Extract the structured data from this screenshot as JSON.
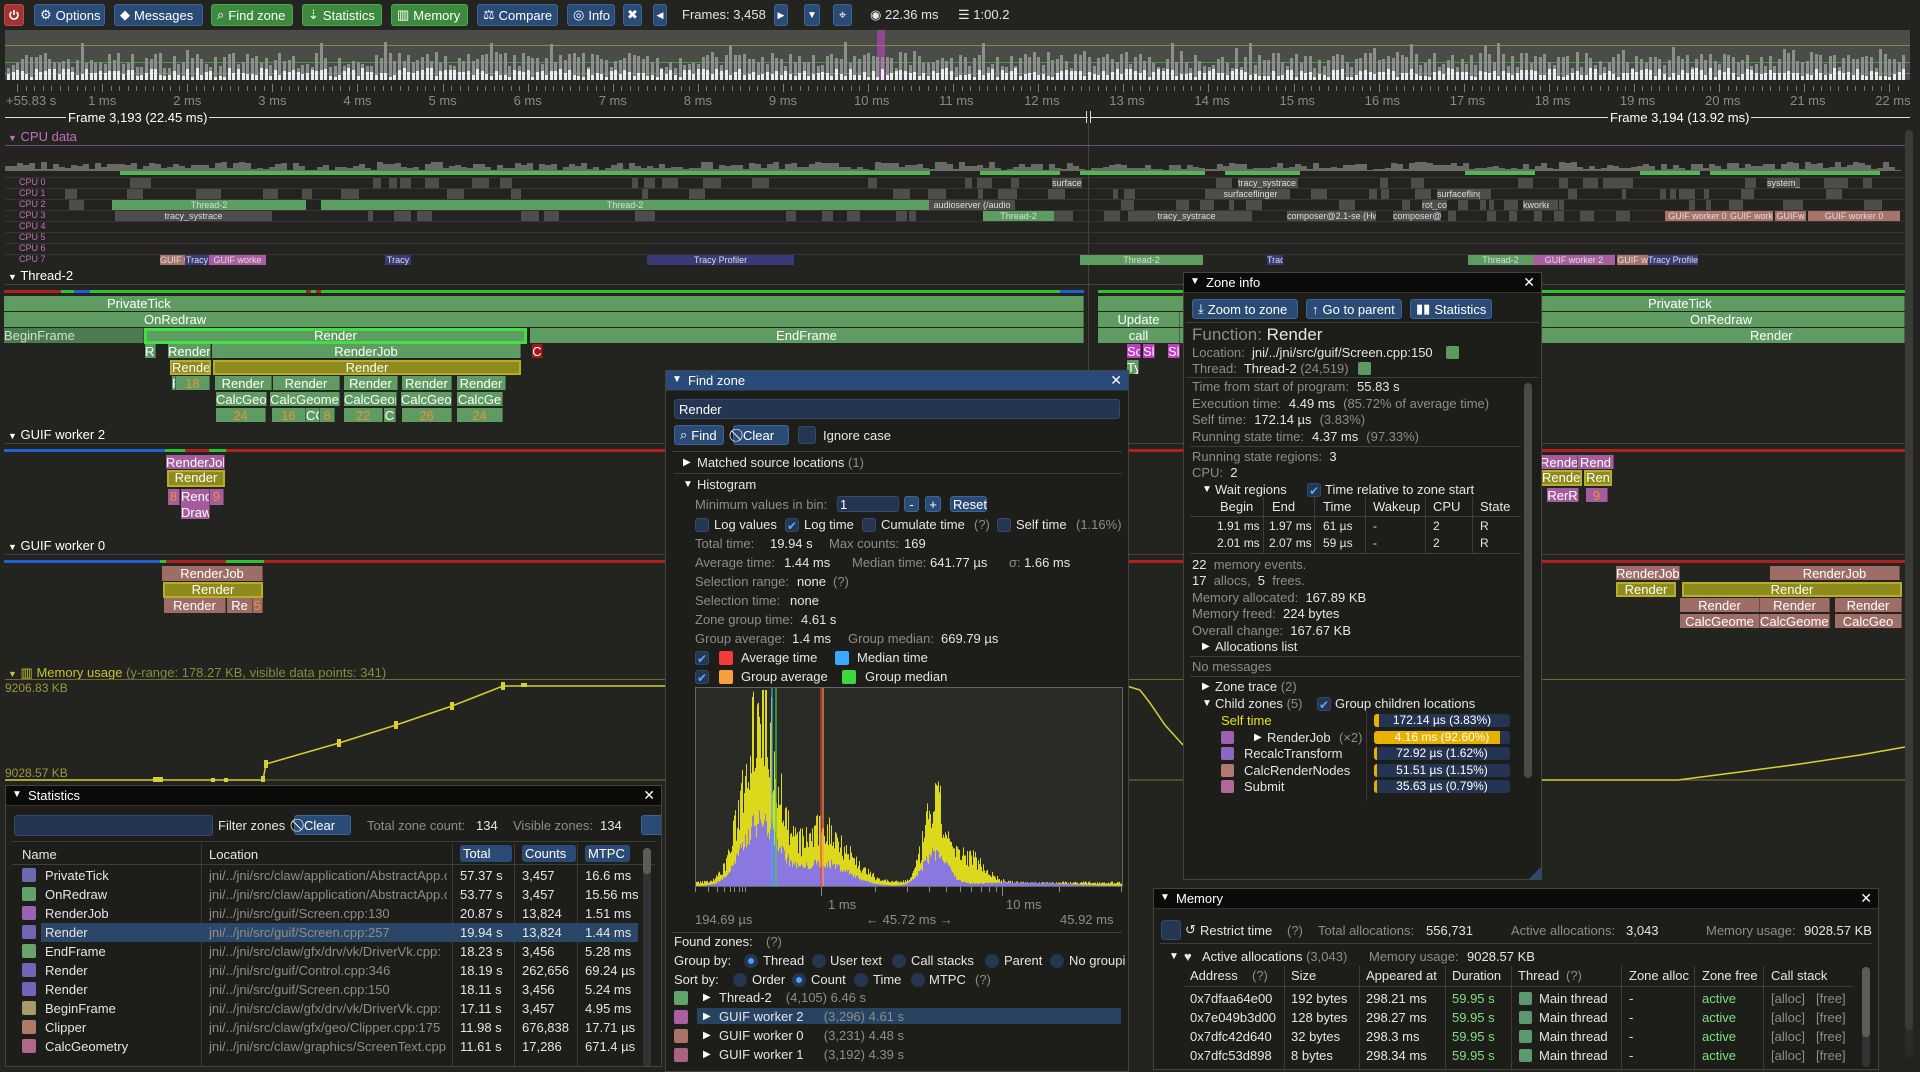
{
  "toolbar": {
    "power_icon": "power-icon",
    "options": "Options",
    "messages": "Messages",
    "find_zone": "Find zone",
    "statistics": "Statistics",
    "memory": "Memory",
    "compare": "Compare",
    "info": "Info",
    "frames": "Frames: 3,458",
    "frame_time": "22.36 ms",
    "trace_time": "1:00.2",
    "colors": {
      "blue_button": "#2b4b77",
      "green_button": "#3b8a3e",
      "red_button": "#a33434"
    }
  },
  "ruler": {
    "labels": [
      "+55.83 s",
      "1 ms",
      "2 ms",
      "3 ms",
      "4 ms",
      "5 ms",
      "6 ms",
      "7 ms",
      "8 ms",
      "9 ms",
      "10 ms",
      "11 ms",
      "12 ms",
      "13 ms",
      "14 ms",
      "15 ms",
      "16 ms",
      "17 ms",
      "18 ms",
      "19 ms",
      "20 ms",
      "21 ms",
      "22 ms"
    ]
  },
  "frames": [
    "Frame 3,193 (22.45 ms)",
    "Frame 3,194 (13.92 ms)"
  ],
  "cpu": {
    "header": "CPU data",
    "rows": [
      "CPU 0",
      "CPU 1",
      "CPU 2",
      "CPU 3",
      "CPU 4",
      "CPU 5",
      "CPU 6",
      "CPU 7"
    ],
    "labels": [
      "Thread-2",
      "tracy_systrace",
      "surfaceflinger",
      "audioserver (/audio",
      "composer@2.1-se (Hw",
      "composer@",
      "kworke",
      "GUIF worker 0",
      "GUIF worker 2",
      "Tracy Profiler",
      "system_s",
      "surfacef",
      "rot_co",
      "Tracy",
      "GUIF w",
      "Trac",
      "kworl",
      "GUIF worke",
      "GUIFw"
    ]
  },
  "threads": {
    "thread2": {
      "name": "Thread-2",
      "zones": [
        "PrivateTick",
        "OnRedraw",
        "BeginFrame",
        "Render",
        "EndFrame",
        "RC",
        "Render",
        "RenderJob",
        "C",
        "Rende",
        "Render",
        "F",
        "18",
        "Render",
        "Render",
        "Render",
        "Render",
        "Render",
        "CalcGeo",
        "CalcGeome",
        "CalcGeor",
        "CalcGeo",
        "CalcGe",
        "24",
        "16",
        "CC",
        "8",
        "22",
        "C",
        "26",
        "24",
        "Update",
        "call",
        "PrivateTick",
        "OnRedraw",
        "Render",
        "Sc",
        "Sl",
        "Sl",
        "Ty"
      ]
    },
    "guif2": {
      "name": "GUIF worker 2",
      "zones": [
        "RenderJol",
        "Render",
        "8",
        "Rend",
        "9",
        "Draw",
        "RenderJ",
        "Rend",
        "Render",
        "Ren",
        "RerR",
        "9"
      ]
    },
    "guif0": {
      "name": "GUIF worker 0",
      "zones": [
        "RenderJob",
        "Render",
        "Render",
        "Re",
        "5",
        "RenderJob",
        "RenderJob",
        "Render",
        "Render",
        "Render",
        "Render",
        "Render",
        "CalcGeome",
        "CalcGeomet",
        "CalcGeo"
      ]
    }
  },
  "memory_plot": {
    "title": "Memory usage",
    "info": "(y-range: 178.27 KB, visible data points: 341)",
    "max": "9206.83 KB",
    "min": "9028.57 KB",
    "color": "#d8d030"
  },
  "find_zone": {
    "title": "Find zone",
    "query": "Render",
    "find": "Find",
    "clear": "Clear",
    "ignore_case": "Ignore case",
    "matched": "Matched source locations",
    "matched_count": "(1)",
    "histogram": "Histogram",
    "min_values_label": "Minimum values in bin:",
    "min_values": "1",
    "minus": "-",
    "plus": "+",
    "reset": "Reset",
    "log_values": "Log values",
    "log_time": "Log time",
    "cumulate_time": "Cumulate time",
    "help": "(?)",
    "self_time": "Self time",
    "self_time_pct": "(1.16%)",
    "total_time_label": "Total time:",
    "total_time": "19.94 s",
    "max_counts_label": "Max counts:",
    "max_counts": "169",
    "avg_time_label": "Average time:",
    "avg_time": "1.44 ms",
    "median_time_label": "Median time:",
    "median_time": "641.77 µs",
    "sigma_label": "σ:",
    "sigma": "1.66 ms",
    "sel_range_label": "Selection range:",
    "sel_range": "none",
    "sel_time_label": "Selection time:",
    "sel_time": "none",
    "zone_group_label": "Zone group time:",
    "zone_group": "4.61 s",
    "group_avg_label": "Group average:",
    "group_avg": "1.4 ms",
    "group_median_label": "Group median:",
    "group_median": "669.79 µs",
    "legend": {
      "average": "Average time",
      "median": "Median time",
      "group_average": "Group average",
      "group_median": "Group median"
    },
    "legend_colors": {
      "average": "#f03c3c",
      "median": "#3ca8ff",
      "group_average": "#f8a040",
      "group_median": "#3cd83c"
    },
    "axis": {
      "tick1": "1 ms",
      "tick2": "10 ms",
      "min": "194.69 µs",
      "range": "← 45.72 ms →",
      "max": "45.92 ms"
    },
    "found_zones": "Found zones:",
    "group_by": "Group by:",
    "group_options": [
      "Thread",
      "User text",
      "Call stacks",
      "Parent",
      "No groupi"
    ],
    "sort_by": "Sort by:",
    "sort_options": [
      "Order",
      "Count",
      "Time",
      "MTPC"
    ],
    "groups": [
      {
        "name": "Thread-2",
        "info": "(4,105) 6.46 s",
        "color": "#5fa468"
      },
      {
        "name": "GUIF worker 2",
        "info": "(3,296) 4.61 s",
        "color": "#a860a0"
      },
      {
        "name": "GUIF worker 0",
        "info": "(3,231) 4.48 s",
        "color": "#a8746a"
      },
      {
        "name": "GUIF worker 1",
        "info": "(3,192) 4.39 s",
        "color": "#a86480"
      }
    ]
  },
  "zone_info": {
    "title": "Zone info",
    "zoom_to_zone": "Zoom to zone",
    "go_to_parent": "Go to parent",
    "statistics": "Statistics",
    "function_label": "Function:",
    "function": "Render",
    "location_label": "Location:",
    "location": "jni/../jni/src/guif/Screen.cpp:150",
    "thread_label": "Thread:",
    "thread": "Thread-2",
    "thread_id": "(24,519)",
    "lines": [
      {
        "label": "Time from start of program:",
        "value": "55.83 s",
        "extra": ""
      },
      {
        "label": "Execution time:",
        "value": "4.49 ms",
        "extra": "(85.72% of average time)"
      },
      {
        "label": "Self time:",
        "value": "172.14 µs",
        "extra": "(3.83%)"
      },
      {
        "label": "Running state time:",
        "value": "4.37 ms",
        "extra": "(97.33%)"
      }
    ],
    "running_regions_label": "Running state regions:",
    "running_regions": "3",
    "cpu_label": "CPU:",
    "cpu": "2",
    "wait_regions": "Wait regions",
    "time_relative": "Time relative to zone start",
    "wait_columns": [
      "Begin",
      "End",
      "Time",
      "Wakeup",
      "CPU",
      "State"
    ],
    "wait_rows": [
      [
        "1.91 ms",
        "1.97 ms",
        "61 µs",
        "-",
        "2",
        "R"
      ],
      [
        "2.01 ms",
        "2.07 ms",
        "59 µs",
        "-",
        "2",
        "R"
      ]
    ],
    "mem_events": "22",
    "mem_events_label": "memory events.",
    "allocs": "17",
    "allocs_label": "allocs,",
    "frees": "5",
    "frees_label": "frees.",
    "mem_alloc_label": "Memory allocated:",
    "mem_alloc": "167.89 KB",
    "mem_freed_label": "Memory freed:",
    "mem_freed": "224 bytes",
    "overall_label": "Overall change:",
    "overall": "167.67 KB",
    "allocations_list": "Allocations list",
    "no_messages": "No messages",
    "zone_trace": "Zone trace",
    "zone_trace_count": "(2)",
    "child_zones": "Child zones",
    "child_count": "(5)",
    "group_children": "Group children locations",
    "children": [
      {
        "name": "Self time",
        "count": "",
        "value": "172.14 µs (3.83%)",
        "fill": 0.0383,
        "color": ""
      },
      {
        "name": "RenderJob",
        "count": "(×2)",
        "value": "4.16 ms (92.60%)",
        "fill": 0.926,
        "color": "#a060b0"
      },
      {
        "name": "RecalcTransform",
        "count": "",
        "value": "72.92 µs (1.62%)",
        "fill": 0.0162,
        "color": "#8a6ac0"
      },
      {
        "name": "CalcRenderNodes",
        "count": "",
        "value": "51.51 µs (1.15%)",
        "fill": 0.0115,
        "color": "#b07a70"
      },
      {
        "name": "Submit",
        "count": "",
        "value": "35.63 µs (0.79%)",
        "fill": 0.0079,
        "color": "#b06898"
      }
    ]
  },
  "statistics": {
    "title": "Statistics",
    "filter_placeholder": "",
    "filter_label": "Filter zones",
    "clear": "Clear",
    "total_label": "Total zone count:",
    "total": "134",
    "visible_label": "Visible zones:",
    "visible": "134",
    "columns": [
      "Name",
      "Location",
      "Total tim",
      "Counts",
      "MTPC"
    ],
    "rows": [
      {
        "name": "PrivateTick",
        "location": "jni/../jni/src/claw/application/AbstractApp.cpp",
        "total": "57.37 s",
        "counts": "3,457",
        "mtpc": "16.6 ms",
        "color": "#6a6ab0"
      },
      {
        "name": "OnRedraw",
        "location": "jni/../jni/src/claw/application/AbstractApp.cpp",
        "total": "53.77 s",
        "counts": "3,457",
        "mtpc": "15.56 ms",
        "color": "#5ea46a"
      },
      {
        "name": "RenderJob",
        "location": "jni/../jni/src/guif/Screen.cpp:130",
        "total": "20.87 s",
        "counts": "13,824",
        "mtpc": "1.51 ms",
        "color": "#9a62b4"
      },
      {
        "name": "Render",
        "location": "jni/../jni/src/guif/Screen.cpp:257",
        "total": "19.94 s",
        "counts": "13,824",
        "mtpc": "1.44 ms",
        "color": "#7464b8",
        "selected": true
      },
      {
        "name": "EndFrame",
        "location": "jni/../jni/src/claw/gfx/drv/vk/DriverVk.cpp:",
        "total": "18.23 s",
        "counts": "3,456",
        "mtpc": "5.28 ms",
        "color": "#6aa46a"
      },
      {
        "name": "Render",
        "location": "jni/../jni/src/guif/Control.cpp:346",
        "total": "18.19 s",
        "counts": "262,656",
        "mtpc": "69.24 µs",
        "color": "#7464b8"
      },
      {
        "name": "Render",
        "location": "jni/../jni/src/guif/Screen.cpp:150",
        "total": "18.11 s",
        "counts": "3,456",
        "mtpc": "5.24 ms",
        "color": "#7464b8"
      },
      {
        "name": "BeginFrame",
        "location": "jni/../jni/src/claw/gfx/drv/vk/DriverVk.cpp:",
        "total": "17.11 s",
        "counts": "3,457",
        "mtpc": "4.95 ms",
        "color": "#a89a6a"
      },
      {
        "name": "Clipper",
        "location": "jni/../jni/src/claw/gfx/geo/Clipper.cpp:175",
        "total": "11.98 s",
        "counts": "676,838",
        "mtpc": "17.71 µs",
        "color": "#b07a6a"
      },
      {
        "name": "CalcGeometry",
        "location": "jni/../jni/src/claw/graphics/ScreenText.cpp",
        "total": "11.61 s",
        "counts": "17,286",
        "mtpc": "671.4 µs",
        "color": "#b06888"
      }
    ]
  },
  "memory_window": {
    "title": "Memory",
    "restrict_time": "Restrict time",
    "help": "(?)",
    "total_alloc_label": "Total allocations:",
    "total_alloc": "556,731",
    "active_alloc_label": "Active allocations:",
    "active_alloc": "3,043",
    "mem_usage_label": "Memory usage:",
    "mem_usage": "9028.57 KB",
    "active_section": "Active allocations",
    "active_count": "(3,043)",
    "columns": [
      "Address",
      "Size",
      "Appeared at",
      "Duration",
      "Thread",
      "Zone alloc",
      "Zone free",
      "Call stack"
    ],
    "rows": [
      {
        "address": "0x7dfaa64e00",
        "size": "192 bytes",
        "appeared": "298.21 ms",
        "duration": "59.95 s",
        "thread": "Main thread",
        "zone_alloc": "-",
        "zone_free": "active",
        "alloc": "[alloc]",
        "free": "[free]"
      },
      {
        "address": "0x7e049b3d00",
        "size": "128 bytes",
        "appeared": "298.27 ms",
        "duration": "59.95 s",
        "thread": "Main thread",
        "zone_alloc": "-",
        "zone_free": "active",
        "alloc": "[alloc]",
        "free": "[free]"
      },
      {
        "address": "0x7dfc42d640",
        "size": "32 bytes",
        "appeared": "298.3 ms",
        "duration": "59.95 s",
        "thread": "Main thread",
        "zone_alloc": "-",
        "zone_free": "active",
        "alloc": "[alloc]",
        "free": "[free]"
      },
      {
        "address": "0x7dfc53d898",
        "size": "8 bytes",
        "appeared": "298.34 ms",
        "duration": "59.95 s",
        "thread": "Main thread",
        "zone_alloc": "-",
        "zone_free": "active",
        "alloc": "[alloc]",
        "free": "[free]"
      }
    ]
  }
}
